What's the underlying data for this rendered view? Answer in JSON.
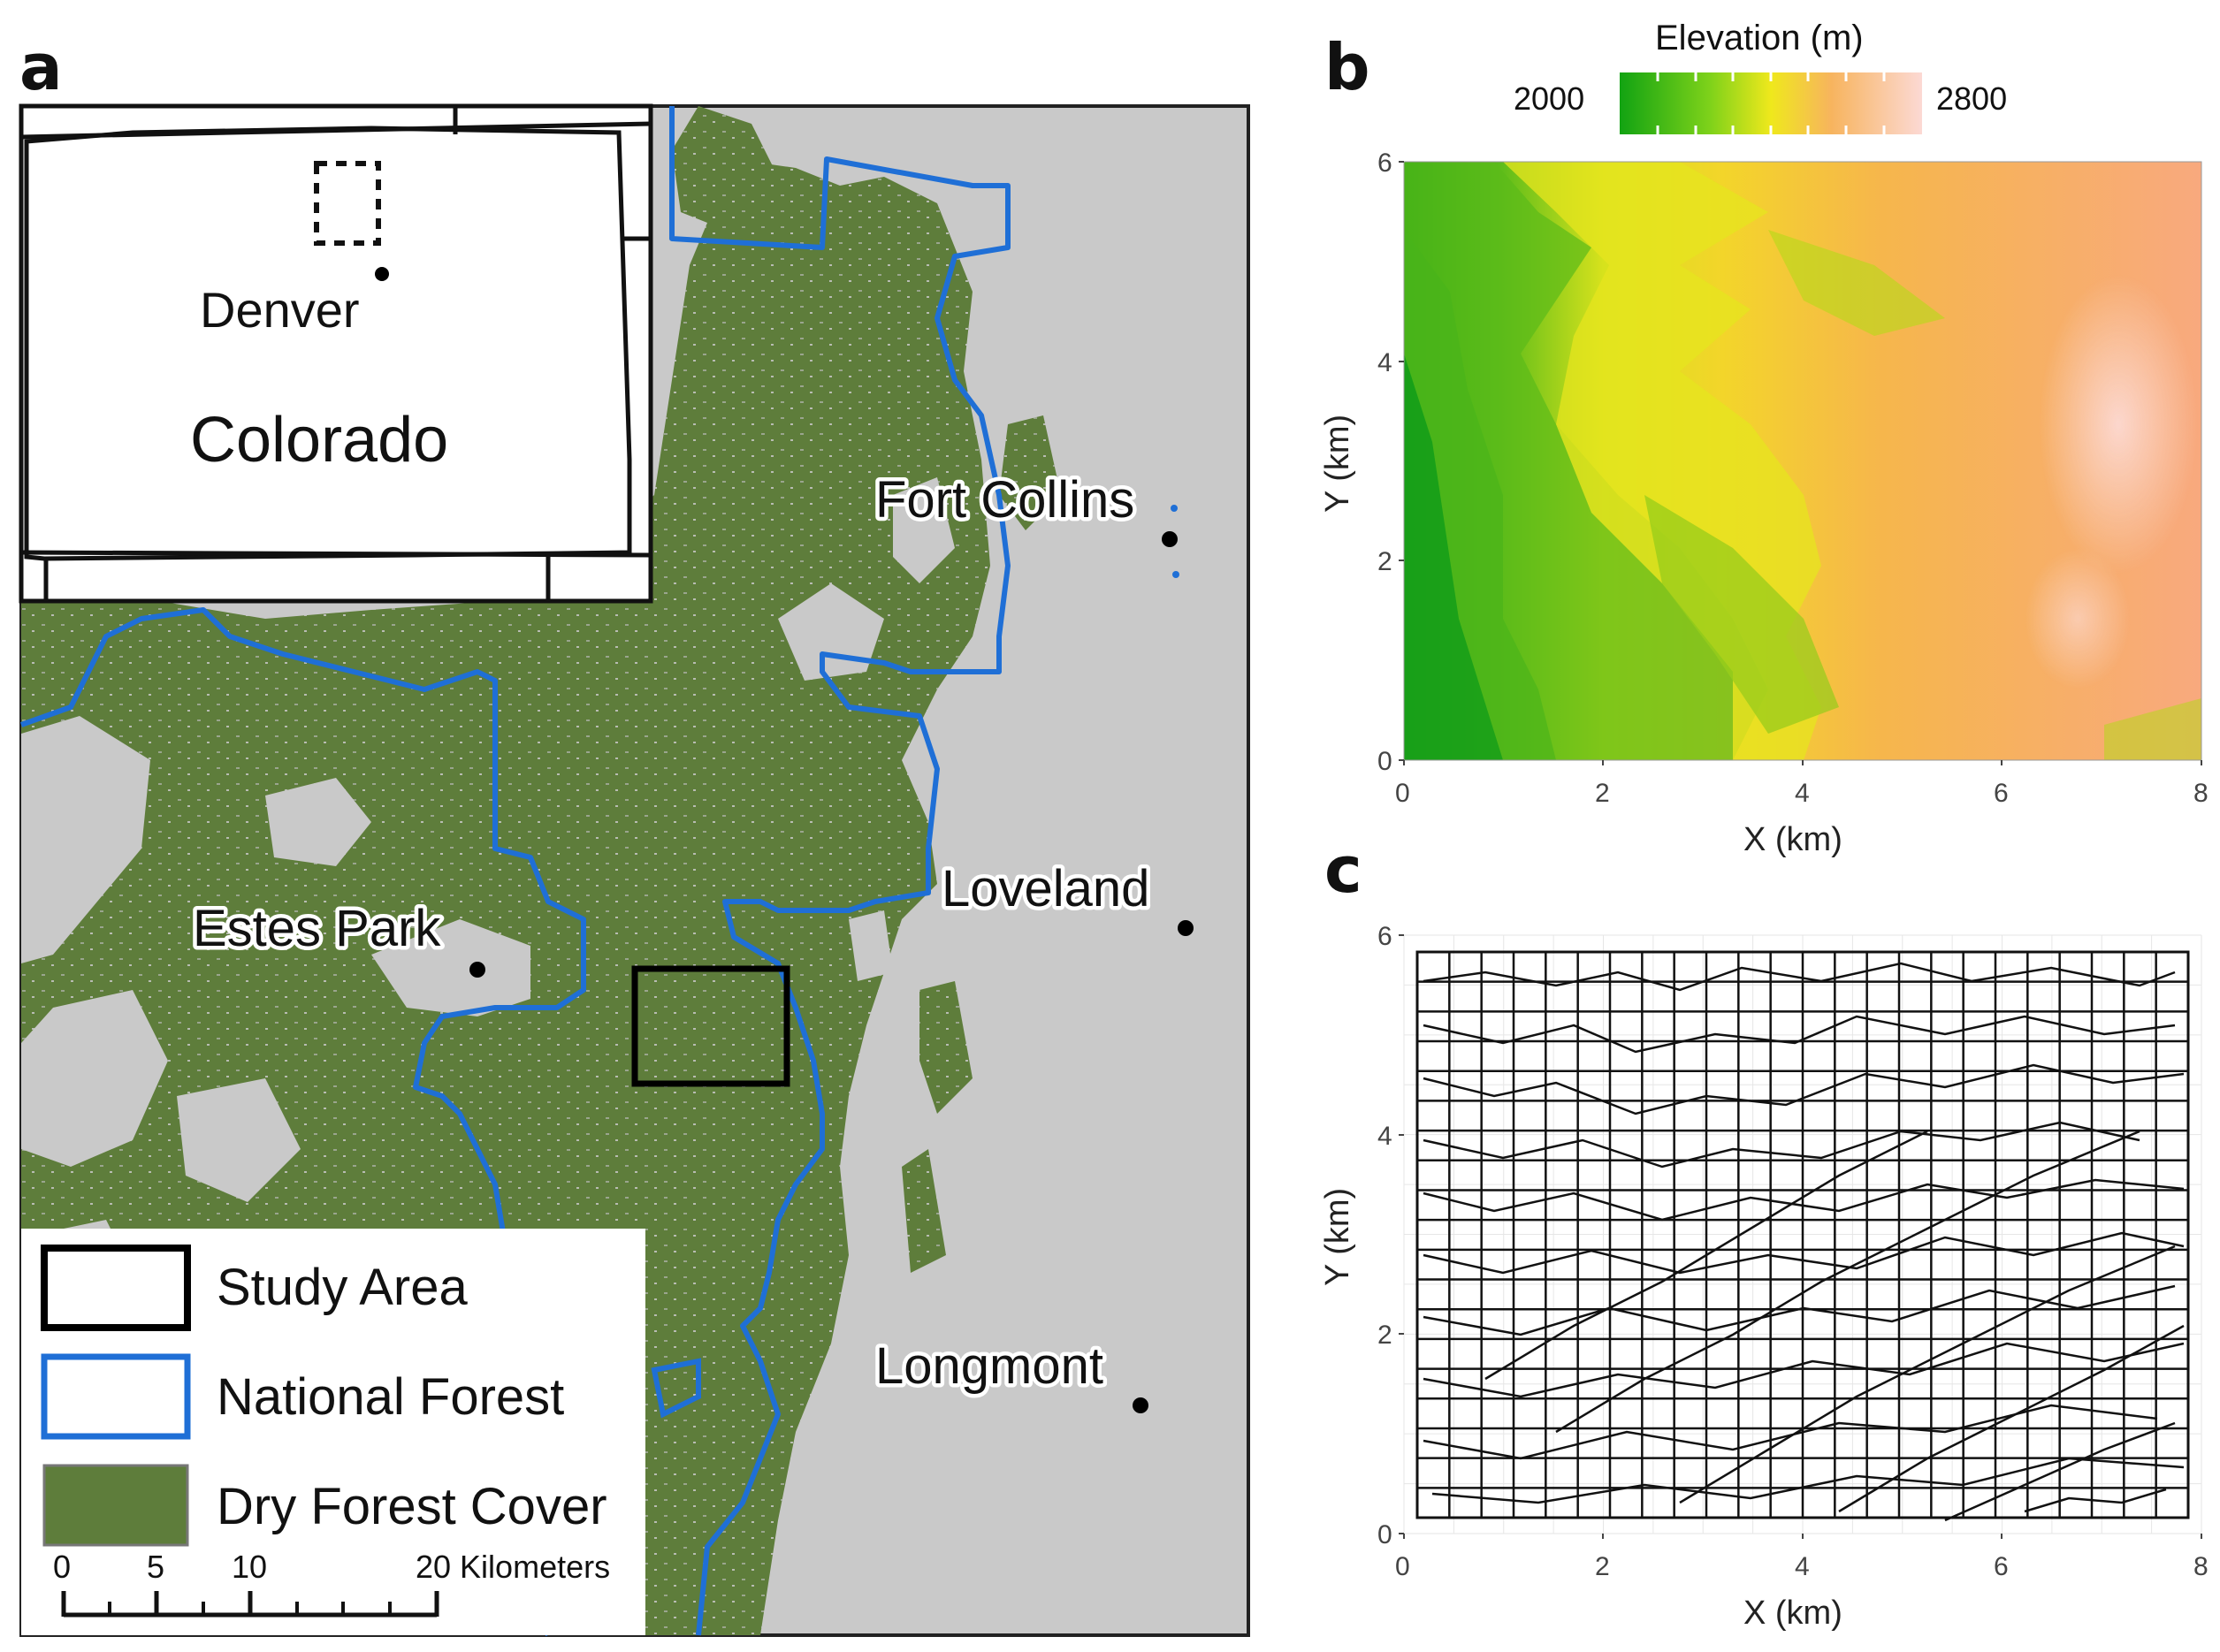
{
  "panels": {
    "a": {
      "letter": "a",
      "inset": {
        "state": "Colorado",
        "city": "Denver"
      },
      "cities": [
        "Fort Collins",
        "Loveland",
        "Estes Park",
        "Longmont"
      ],
      "legend": [
        "Study Area",
        "National Forest",
        "Dry Forest Cover"
      ],
      "scalebar": {
        "ticks": [
          "0",
          "5",
          "10",
          "20 Kilometers"
        ]
      },
      "colors": {
        "background": "#c9c9c9",
        "forest": "#5e7d3b",
        "national_forest": "#1f6fd6",
        "study_area": "#000000"
      }
    },
    "b": {
      "letter": "b",
      "legend_title": "Elevation (m)",
      "legend_min": "2000",
      "legend_max": "2800",
      "xlabel": "X (km)",
      "ylabel": "Y (km)",
      "xticks": [
        "0",
        "2",
        "4",
        "6",
        "8"
      ],
      "yticks": [
        "0",
        "2",
        "4",
        "6"
      ],
      "colors": {
        "low": "#1fa81f",
        "mid": "#e8e81a",
        "high": "#f7a77e",
        "peak": "#fbd7d3"
      }
    },
    "c": {
      "letter": "c",
      "xlabel": "X (km)",
      "ylabel": "Y (km)",
      "xticks": [
        "0",
        "2",
        "4",
        "6",
        "8"
      ],
      "yticks": [
        "0",
        "2",
        "4",
        "6"
      ]
    }
  }
}
